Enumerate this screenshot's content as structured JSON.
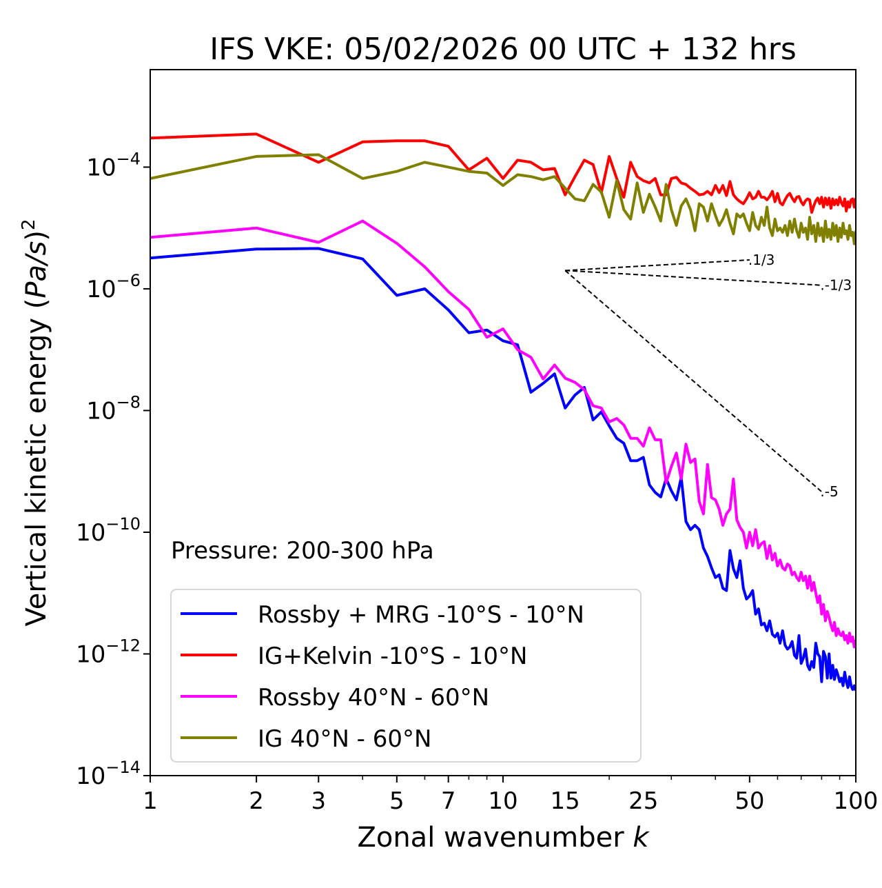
{
  "chart_data": {
    "type": "line",
    "title": "IFS VKE: 05/02/2026 00 UTC + 132 hrs",
    "xlabel": "Zonal wavenumber k",
    "xlabel_main": "Zonal wavenumber ",
    "xlabel_italic": "k",
    "ylabel": "Vertical kinetic energy (Pa/s)^2",
    "ylabel_main": "Vertical kinetic energy (",
    "ylabel_italic": "Pa/s",
    "ylabel_close": ")",
    "ylabel_sup": "2",
    "xscale": "log",
    "yscale": "log",
    "xlim": [
      1,
      100
    ],
    "ylim": [
      1e-14,
      0.004
    ],
    "grid": false,
    "legend_placement": "lower-left",
    "x_ticks": [
      {
        "value": 1,
        "label": "1"
      },
      {
        "value": 2,
        "label": "2"
      },
      {
        "value": 3,
        "label": "3"
      },
      {
        "value": 5,
        "label": "5"
      },
      {
        "value": 7,
        "label": "7"
      },
      {
        "value": 10,
        "label": "10"
      },
      {
        "value": 15,
        "label": "15"
      },
      {
        "value": 25,
        "label": "25"
      },
      {
        "value": 50,
        "label": "50"
      },
      {
        "value": 100,
        "label": "100"
      }
    ],
    "y_ticks": [
      {
        "value": 0.0001,
        "base": "10",
        "exp": "−4"
      },
      {
        "value": 1e-06,
        "base": "10",
        "exp": "−6"
      },
      {
        "value": 1e-08,
        "base": "10",
        "exp": "−8"
      },
      {
        "value": 1e-10,
        "base": "10",
        "exp": "−10"
      },
      {
        "value": 1e-12,
        "base": "10",
        "exp": "−12"
      },
      {
        "value": 1e-14,
        "base": "10",
        "exp": "−14"
      }
    ],
    "annotation": "Pressure: 200-300 hPa",
    "reference_slopes": [
      {
        "label": "1/3",
        "slope": 0.3333,
        "k_start": 15,
        "k_end": 50,
        "e_start": 2e-06
      },
      {
        "label": "-1/3",
        "slope": -0.3333,
        "k_start": 15,
        "k_end": 80,
        "e_start": 2e-06
      },
      {
        "label": "-5",
        "slope": -5,
        "k_start": 15,
        "k_end": 80,
        "e_start": 2e-06
      }
    ],
    "series": [
      {
        "name": "Rossby + MRG -10°S - 10°N",
        "color": "#0000ff",
        "x": [
          1,
          2,
          3,
          4,
          5,
          6,
          7,
          8,
          9,
          10,
          11,
          12,
          13,
          14,
          15,
          16,
          17,
          18,
          19,
          20,
          21,
          22,
          23,
          24,
          25,
          26,
          27,
          28,
          29,
          30,
          31,
          32,
          33,
          34,
          35,
          36,
          37,
          38,
          39,
          40,
          41,
          42,
          43,
          44,
          45,
          46,
          47,
          48,
          49,
          50,
          51,
          52,
          53,
          54,
          55,
          56,
          57,
          58,
          59,
          60,
          61,
          62,
          63,
          64,
          65,
          66,
          67,
          68,
          69,
          70,
          71,
          72,
          73,
          74,
          75,
          76,
          77,
          78,
          79,
          80,
          81,
          82,
          83,
          84,
          85,
          86,
          87,
          88,
          89,
          90,
          91,
          92,
          93,
          94,
          95,
          96,
          97,
          98,
          99,
          100
        ],
        "values": [
          3.2e-06,
          4.5e-06,
          4.6e-06,
          3.1e-06,
          7.8e-07,
          1e-06,
          4.5e-07,
          1.9e-07,
          2.1e-07,
          1.4e-07,
          1.2e-07,
          2e-08,
          2.8e-08,
          4e-08,
          1.1e-08,
          1.8e-08,
          2.4e-08,
          7e-09,
          9.5e-09,
          5.6e-09,
          3.5e-09,
          2.9e-09,
          1.5e-09,
          1.5e-09,
          1.7e-09,
          6e-10,
          4.5e-10,
          3.8e-10,
          7.6e-10,
          4.8e-10,
          3.4e-10,
          8e-10,
          1.5e-10,
          1.1e-10,
          1.3e-10,
          1.1e-10,
          5.5e-11,
          4e-11,
          2.6e-11,
          1.8e-11,
          2e-11,
          1.2e-11,
          1.1e-11,
          5e-11,
          2.5e-11,
          1.8e-11,
          3.4e-11,
          1.2e-11,
          8e-12,
          9e-12,
          1.1e-11,
          4.5e-12,
          5.5e-12,
          3e-12,
          3.2e-12,
          2.4e-12,
          3.5e-12,
          2.1e-12,
          1.9e-12,
          2.2e-12,
          1.5e-12,
          2.4e-12,
          1.4e-12,
          1.2e-12,
          1.3e-12,
          1.6e-12,
          9.5e-13,
          8.5e-13,
          2e-12,
          7e-13,
          8.5e-13,
          1.2e-12,
          6.5e-13,
          5.5e-13,
          7.5e-13,
          6e-13,
          1.5e-12,
          1e-12,
          9e-13,
          3.5e-13,
          1.1e-12,
          9e-13,
          4e-13,
          1e-12,
          4e-13,
          6.5e-13,
          3.8e-13,
          5.5e-13,
          4.5e-13,
          3.5e-13,
          4e-13,
          3e-13,
          5e-13,
          3.5e-13,
          2.8e-13,
          4.2e-13,
          3e-13,
          2.6e-13,
          3e-13,
          2.5e-13
        ]
      },
      {
        "name": "IG+Kelvin -10°S - 10°N",
        "color": "#ff0000",
        "x": [
          1,
          2,
          3,
          4,
          5,
          6,
          7,
          8,
          9,
          10,
          11,
          12,
          13,
          14,
          15,
          16,
          17,
          18,
          19,
          20,
          21,
          22,
          23,
          24,
          25,
          26,
          27,
          28,
          29,
          30,
          31,
          32,
          33,
          34,
          35,
          36,
          37,
          38,
          39,
          40,
          41,
          42,
          43,
          44,
          45,
          46,
          47,
          48,
          49,
          50,
          51,
          52,
          53,
          54,
          55,
          56,
          57,
          58,
          59,
          60,
          61,
          62,
          63,
          64,
          65,
          66,
          67,
          68,
          69,
          70,
          71,
          72,
          73,
          74,
          75,
          76,
          77,
          78,
          79,
          80,
          81,
          82,
          83,
          84,
          85,
          86,
          87,
          88,
          89,
          90,
          91,
          92,
          93,
          94,
          95,
          96,
          97,
          98,
          99,
          100
        ],
        "values": [
          0.0003,
          0.00035,
          0.00012,
          0.00026,
          0.00027,
          0.00027,
          0.00022,
          9e-05,
          0.00014,
          6.5e-05,
          0.00013,
          0.00012,
          9e-05,
          9.5e-05,
          3.5e-05,
          7e-05,
          0.00013,
          0.00011,
          3.8e-05,
          0.00015,
          6.5e-05,
          3.2e-05,
          0.00012,
          7e-05,
          6e-05,
          5.5e-05,
          6.5e-05,
          3.5e-05,
          3.5e-05,
          6.5e-05,
          6.8e-05,
          5.5e-05,
          5.2e-05,
          4.5e-05,
          4e-05,
          3.5e-05,
          3.6e-05,
          4e-05,
          3.5e-05,
          5e-05,
          3.8e-05,
          5e-05,
          3.4e-05,
          5.8e-05,
          3.5e-05,
          3e-05,
          2.7e-05,
          2.5e-05,
          3e-05,
          3.8e-05,
          3e-05,
          3.2e-05,
          4e-05,
          3.2e-05,
          3.2e-05,
          2.9e-05,
          3.3e-05,
          4e-05,
          2.7e-05,
          3.7e-05,
          2.6e-05,
          2.4e-05,
          2.9e-05,
          3.4e-05,
          3.7e-05,
          3.1e-05,
          2.7e-05,
          3.2e-05,
          3.3e-05,
          2.7e-05,
          2.4e-05,
          2.8e-05,
          3e-05,
          2.9e-05,
          1.8e-05,
          2.3e-05,
          2.8e-05,
          3.1e-05,
          2.5e-05,
          3.2e-05,
          2.2e-05,
          3.1e-05,
          2.4e-05,
          3.1e-05,
          2.1e-05,
          3e-05,
          2.4e-05,
          2.9e-05,
          2.4e-05,
          3.2e-05,
          2.6e-05,
          2.3e-05,
          3e-05,
          1.9e-05,
          2.7e-05,
          2.2e-05,
          2.9e-05,
          3e-05,
          2.2e-05,
          3.1e-05
        ]
      },
      {
        "name": "Rossby 40°N - 60°N",
        "color": "#ff00ff",
        "x": [
          1,
          2,
          3,
          4,
          5,
          6,
          7,
          8,
          9,
          10,
          11,
          12,
          13,
          14,
          15,
          16,
          17,
          18,
          19,
          20,
          21,
          22,
          23,
          24,
          25,
          26,
          27,
          28,
          29,
          30,
          31,
          32,
          33,
          34,
          35,
          36,
          37,
          38,
          39,
          40,
          41,
          42,
          43,
          44,
          45,
          46,
          47,
          48,
          49,
          50,
          51,
          52,
          53,
          54,
          55,
          56,
          57,
          58,
          59,
          60,
          61,
          62,
          63,
          64,
          65,
          66,
          67,
          68,
          69,
          70,
          71,
          72,
          73,
          74,
          75,
          76,
          77,
          78,
          79,
          80,
          81,
          82,
          83,
          84,
          85,
          86,
          87,
          88,
          89,
          90,
          91,
          92,
          93,
          94,
          95,
          96,
          97,
          98,
          99,
          100
        ],
        "values": [
          7e-06,
          1e-05,
          5.8e-06,
          1.3e-05,
          5.6e-06,
          2.3e-06,
          9e-07,
          4.6e-07,
          1.6e-07,
          2.2e-07,
          1e-07,
          7.5e-08,
          3.3e-08,
          5.6e-08,
          3.4e-08,
          2.9e-08,
          2.2e-08,
          1.2e-08,
          1.1e-08,
          6.5e-09,
          7.4e-09,
          5.8e-09,
          3.5e-09,
          3.5e-09,
          2.6e-09,
          5.2e-09,
          3.3e-09,
          3.3e-09,
          6.5e-10,
          1.2e-09,
          2e-09,
          7.5e-10,
          2.8e-09,
          1.4e-09,
          1.6e-09,
          3.2e-10,
          2e-10,
          1.3e-09,
          3.7e-10,
          3.4e-10,
          2.4e-10,
          1.3e-10,
          2e-10,
          2.4e-10,
          7.5e-10,
          1.6e-10,
          1.2e-10,
          1e-10,
          5.5e-11,
          1e-10,
          6e-11,
          1.1e-10,
          5.5e-11,
          6.5e-11,
          7e-11,
          3.7e-11,
          6e-11,
          3.5e-11,
          4.5e-11,
          2.8e-11,
          3.5e-11,
          2.6e-11,
          2.4e-11,
          3e-11,
          2.8e-11,
          2e-11,
          2.2e-11,
          1.8e-11,
          1.6e-11,
          2.2e-11,
          1.6e-11,
          1.9e-11,
          1.2e-11,
          1.9e-11,
          1.1e-11,
          1.5e-11,
          1e-11,
          7e-12,
          9e-12,
          4.5e-12,
          6.5e-12,
          3.5e-12,
          5e-12,
          4e-12,
          3e-12,
          2.4e-12,
          3.3e-12,
          2e-12,
          2.6e-12,
          2.1e-12,
          2e-12,
          2.3e-12,
          1.7e-12,
          2e-12,
          1.5e-12,
          2.2e-12,
          1.6e-12,
          1.9e-12,
          1.3e-12,
          1.7e-12
        ]
      },
      {
        "name": "IG 40°N - 60°N",
        "color": "#808000",
        "x": [
          1,
          2,
          3,
          4,
          5,
          6,
          7,
          8,
          9,
          10,
          11,
          12,
          13,
          14,
          15,
          16,
          17,
          18,
          19,
          20,
          21,
          22,
          23,
          24,
          25,
          26,
          27,
          28,
          29,
          30,
          31,
          32,
          33,
          34,
          35,
          36,
          37,
          38,
          39,
          40,
          41,
          42,
          43,
          44,
          45,
          46,
          47,
          48,
          49,
          50,
          51,
          52,
          53,
          54,
          55,
          56,
          57,
          58,
          59,
          60,
          61,
          62,
          63,
          64,
          65,
          66,
          67,
          68,
          69,
          70,
          71,
          72,
          73,
          74,
          75,
          76,
          77,
          78,
          79,
          80,
          81,
          82,
          83,
          84,
          85,
          86,
          87,
          88,
          89,
          90,
          91,
          92,
          93,
          94,
          95,
          96,
          97,
          98,
          99,
          100
        ],
        "values": [
          6.5e-05,
          0.00015,
          0.00016,
          6.5e-05,
          8.5e-05,
          0.00012,
          0.0001,
          8.5e-05,
          8e-05,
          5e-05,
          7.5e-05,
          7e-05,
          6.2e-05,
          7e-05,
          4.5e-05,
          3e-05,
          2.8e-05,
          5.2e-05,
          3.9e-05,
          1.5e-05,
          6e-05,
          2e-05,
          1.4e-05,
          5.5e-05,
          1.8e-05,
          3.6e-05,
          2.2e-05,
          1.3e-05,
          5.2e-05,
          2e-05,
          1.1e-05,
          2.3e-05,
          3e-05,
          2e-05,
          9e-06,
          2.5e-05,
          2.2e-05,
          1.3e-05,
          2.5e-05,
          1.6e-05,
          1.1e-05,
          1.4e-05,
          2e-05,
          1.2e-05,
          8e-06,
          1.7e-05,
          1.5e-05,
          1.7e-05,
          1.2e-05,
          9e-06,
          1.8e-05,
          1.1e-05,
          9.5e-06,
          1.5e-05,
          1.1e-05,
          2.2e-05,
          1e-05,
          7.5e-06,
          1.4e-05,
          9e-06,
          1e-05,
          8.5e-06,
          1.1e-05,
          7.5e-06,
          1.3e-05,
          8.5e-06,
          1.4e-05,
          9e-06,
          7e-06,
          1.2e-05,
          8.5e-06,
          1e-05,
          6.5e-06,
          1.5e-05,
          8e-06,
          1.1e-05,
          6e-06,
          1.2e-05,
          7.5e-06,
          1e-05,
          6e-06,
          1.3e-05,
          7e-06,
          9.5e-06,
          6.5e-06,
          1.2e-05,
          7.5e-06,
          1.1e-05,
          6e-06,
          1e-05,
          7e-06,
          1.2e-05,
          8e-06,
          9e-06,
          6.5e-06,
          1.1e-05,
          7.5e-06,
          8.5e-06,
          5.5e-06,
          9e-06
        ]
      }
    ]
  }
}
